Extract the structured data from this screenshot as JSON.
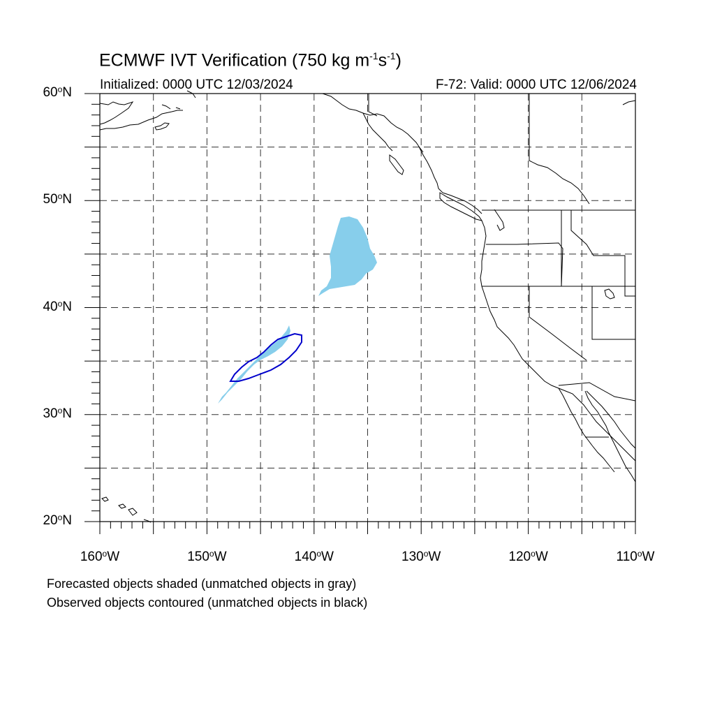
{
  "title": {
    "main": "ECMWF IVT Verification (750 kg m",
    "exp1": "-1",
    "mid": "s",
    "exp2": "-1",
    "close": ")"
  },
  "subtitle": {
    "initialized": "Initialized: 0000 UTC 12/03/2024",
    "valid": "F-72: Valid: 0000 UTC 12/06/2024"
  },
  "map": {
    "lon_range": [
      -160,
      -110
    ],
    "lat_range": [
      20,
      60
    ],
    "grid_step_deg": 5,
    "grid_style": "dashed",
    "forecast_fill_color": "#87ceeb",
    "observed_contour_color": "#0000cc",
    "coastline_color": "#000000"
  },
  "lat_labels": [
    {
      "value": 60,
      "text": "60",
      "hemi": "N"
    },
    {
      "value": 50,
      "text": "50",
      "hemi": "N"
    },
    {
      "value": 40,
      "text": "40",
      "hemi": "N"
    },
    {
      "value": 30,
      "text": "30",
      "hemi": "N"
    },
    {
      "value": 20,
      "text": "20",
      "hemi": "N"
    }
  ],
  "lon_labels": [
    {
      "value": -160,
      "text": "160",
      "hemi": "W"
    },
    {
      "value": -150,
      "text": "150",
      "hemi": "W"
    },
    {
      "value": -140,
      "text": "140",
      "hemi": "W"
    },
    {
      "value": -130,
      "text": "130",
      "hemi": "W"
    },
    {
      "value": -120,
      "text": "120",
      "hemi": "W"
    },
    {
      "value": -110,
      "text": "110",
      "hemi": "W"
    }
  ],
  "notes": {
    "forecast": "Forecasted objects shaded (unmatched objects in gray)",
    "observed": "Observed objects contoured (unmatched objects in black)"
  }
}
